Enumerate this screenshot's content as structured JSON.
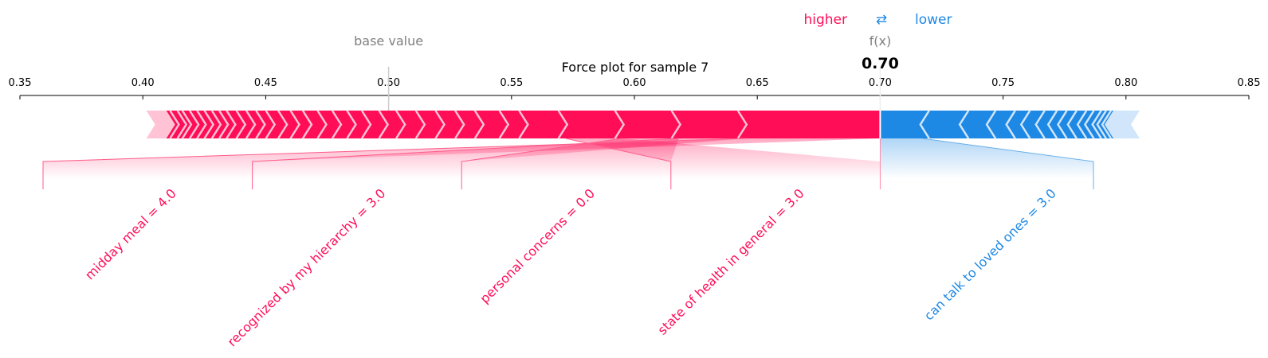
{
  "chart_data": {
    "type": "force",
    "title": "Force plot for sample 7",
    "base_value_label": "base value",
    "base_value": 0.5,
    "output_label": "f(x)",
    "output_value": 0.7,
    "output_value_text": "0.70",
    "xlim": [
      0.35,
      0.85
    ],
    "ticks": [
      0.35,
      0.4,
      0.45,
      0.5,
      0.55,
      0.6,
      0.65,
      0.7,
      0.75,
      0.8,
      0.85
    ],
    "tick_labels": [
      "0.35",
      "0.40",
      "0.45",
      "0.50",
      "0.55",
      "0.60",
      "0.65",
      "0.70",
      "0.75",
      "0.80",
      "0.85"
    ],
    "legend": {
      "higher": "higher",
      "lower": "lower",
      "arrow": "⇄"
    },
    "colors": {
      "positive": "#ff0d57",
      "negative": "#1e88e5",
      "positive_light": "#ffc3d5",
      "negative_light": "#d1e6fa",
      "muted": "#808080"
    },
    "positive_range": [
      0.405,
      0.7
    ],
    "negative_range": [
      0.7,
      0.802
    ],
    "labeled_features": [
      {
        "label": "midday meal = 4.0",
        "direction": "positive",
        "segment": [
          0.645,
          0.7
        ]
      },
      {
        "label": "recognized by my hierarchy = 3.0",
        "direction": "positive",
        "segment": [
          0.618,
          0.645
        ]
      },
      {
        "label": "personal concerns = 0.0",
        "direction": "positive",
        "segment": [
          0.595,
          0.618
        ]
      },
      {
        "label": "state of health in general = 3.0",
        "direction": "positive",
        "segment": [
          0.572,
          0.595
        ]
      },
      {
        "label": "can talk to loved ones = 3.0",
        "direction": "negative",
        "segment": [
          0.7,
          0.717
        ]
      }
    ],
    "positive_boundaries": [
      0.645,
      0.618,
      0.595,
      0.572,
      0.556,
      0.548,
      0.538,
      0.53,
      0.522,
      0.514,
      0.506,
      0.499,
      0.492,
      0.486,
      0.48,
      0.474,
      0.468,
      0.463,
      0.458,
      0.453,
      0.449,
      0.445,
      0.441,
      0.437,
      0.434,
      0.431,
      0.428,
      0.425,
      0.422,
      0.419,
      0.417,
      0.414,
      0.412
    ],
    "negative_boundaries": [
      0.717,
      0.733,
      0.744,
      0.752,
      0.758,
      0.764,
      0.769,
      0.773,
      0.777,
      0.781,
      0.784,
      0.787,
      0.789,
      0.791,
      0.793,
      0.795,
      0.797
    ]
  }
}
